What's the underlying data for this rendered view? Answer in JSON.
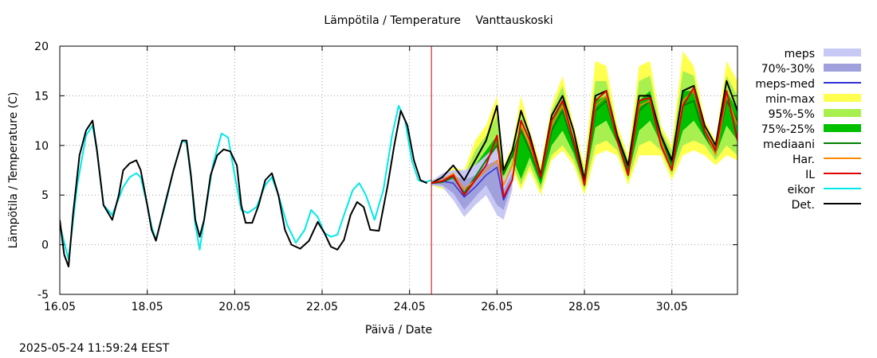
{
  "chart_data": {
    "type": "line",
    "title": "Lämpötila / Temperature",
    "location": "Vanttauskoski",
    "xlabel": "Päivä / Date",
    "ylabel": "Lämpötila / Temperature (C)",
    "timestamp": "2025-05-24 11:59:24 EEST",
    "xlim": [
      16.0,
      31.5
    ],
    "ylim": [
      -5,
      20
    ],
    "x_ticks": [
      {
        "x": 16,
        "label": "16.05"
      },
      {
        "x": 18,
        "label": "18.05"
      },
      {
        "x": 20,
        "label": "20.05"
      },
      {
        "x": 22,
        "label": "22.05"
      },
      {
        "x": 24,
        "label": "24.05"
      },
      {
        "x": 26,
        "label": "26.05"
      },
      {
        "x": 28,
        "label": "28.05"
      },
      {
        "x": 30,
        "label": "30.05"
      }
    ],
    "y_ticks": [
      -5,
      0,
      5,
      10,
      15,
      20
    ],
    "grid": true,
    "forecast_start_x": 24.5,
    "legend_placement": "right",
    "legend": [
      {
        "label": "meps",
        "kind": "band",
        "color": "#c8c8f4"
      },
      {
        "label": "70%-30%",
        "kind": "band",
        "color": "#a0a0dc"
      },
      {
        "label": "meps-med",
        "kind": "line",
        "color": "#3030d8"
      },
      {
        "label": "min-max",
        "kind": "band",
        "color": "#ffff50"
      },
      {
        "label": "95%-5%",
        "kind": "band",
        "color": "#a8f050"
      },
      {
        "label": "75%-25%",
        "kind": "band",
        "color": "#00c000"
      },
      {
        "label": "mediaani",
        "kind": "line",
        "color": "#008000"
      },
      {
        "label": "Har.",
        "kind": "line",
        "color": "#ff8800"
      },
      {
        "label": "IL",
        "kind": "line",
        "color": "#e00000"
      },
      {
        "label": "eikor",
        "kind": "line",
        "color": "#00e8e8"
      },
      {
        "label": "Det.",
        "kind": "line",
        "color": "#000000"
      }
    ],
    "observed_det": {
      "x": [
        16.0,
        16.1,
        16.2,
        16.3,
        16.45,
        16.6,
        16.75,
        16.85,
        17.0,
        17.2,
        17.35,
        17.45,
        17.6,
        17.75,
        17.85,
        18.0,
        18.1,
        18.2,
        18.4,
        18.6,
        18.8,
        18.9,
        19.0,
        19.1,
        19.2,
        19.3,
        19.45,
        19.6,
        19.75,
        19.9,
        20.05,
        20.15,
        20.25,
        20.4,
        20.55,
        20.7,
        20.85,
        21.0,
        21.15,
        21.3,
        21.5,
        21.7,
        21.9,
        22.05,
        22.2,
        22.35,
        22.5,
        22.65,
        22.8,
        22.95,
        23.1,
        23.3,
        23.5,
        23.65,
        23.8,
        23.95,
        24.1,
        24.25,
        24.4
      ],
      "y": [
        2.5,
        -1.0,
        -2.2,
        3.0,
        9.0,
        11.5,
        12.5,
        9.5,
        4.0,
        2.5,
        5.0,
        7.5,
        8.2,
        8.5,
        7.5,
        4.0,
        1.5,
        0.4,
        4.0,
        7.5,
        10.5,
        10.5,
        7.0,
        2.5,
        0.8,
        2.5,
        7.0,
        9.0,
        9.6,
        9.4,
        8.0,
        4.0,
        2.2,
        2.2,
        4.0,
        6.5,
        7.2,
        5.0,
        1.5,
        0.0,
        -0.4,
        0.4,
        2.3,
        1.2,
        -0.2,
        -0.5,
        0.5,
        3.0,
        4.3,
        3.8,
        1.5,
        1.4,
        6.0,
        10.0,
        13.5,
        12.0,
        8.5,
        6.5,
        6.2
      ]
    },
    "eikor": {
      "x": [
        16.0,
        16.2,
        16.4,
        16.6,
        16.75,
        16.85,
        17.0,
        17.2,
        17.45,
        17.6,
        17.75,
        17.85,
        18.0,
        18.1,
        18.2,
        18.4,
        18.6,
        18.8,
        18.9,
        19.0,
        19.1,
        19.2,
        19.3,
        19.5,
        19.7,
        19.85,
        20.0,
        20.15,
        20.3,
        20.5,
        20.7,
        20.85,
        21.0,
        21.2,
        21.4,
        21.6,
        21.75,
        21.9,
        22.05,
        22.2,
        22.35,
        22.5,
        22.7,
        22.85,
        23.0,
        23.2,
        23.4,
        23.6,
        23.75,
        23.9,
        24.05,
        24.2,
        24.35,
        24.5
      ],
      "y": [
        2.0,
        -1.5,
        6.0,
        11.0,
        12.0,
        9.5,
        4.0,
        3.0,
        5.8,
        6.8,
        7.2,
        6.8,
        4.0,
        1.8,
        0.5,
        3.8,
        7.5,
        10.5,
        10.2,
        6.8,
        2.0,
        -0.5,
        2.5,
        8.0,
        11.2,
        10.8,
        7.0,
        3.5,
        3.2,
        3.8,
        6.0,
        6.8,
        5.0,
        2.0,
        0.2,
        1.5,
        3.5,
        2.8,
        1.2,
        0.8,
        1.0,
        3.0,
        5.5,
        6.2,
        5.0,
        2.5,
        5.5,
        11.0,
        14.0,
        12.5,
        8.5,
        6.5,
        6.3,
        6.5
      ]
    },
    "forecast": {
      "x": [
        24.5,
        24.75,
        25.0,
        25.25,
        25.5,
        25.75,
        26.0,
        26.15,
        26.35,
        26.55,
        26.75,
        27.0,
        27.25,
        27.5,
        27.75,
        28.0,
        28.25,
        28.5,
        28.75,
        29.0,
        29.25,
        29.5,
        29.75,
        30.0,
        30.25,
        30.5,
        30.75,
        31.0,
        31.25,
        31.5
      ],
      "min_max_low": [
        6.0,
        5.6,
        6.0,
        3.5,
        5.0,
        5.5,
        3.5,
        6.0,
        7.5,
        5.5,
        7.5,
        5.0,
        8.5,
        9.5,
        8.0,
        5.0,
        9.0,
        9.5,
        9.0,
        6.0,
        9.0,
        9.0,
        9.0,
        6.5,
        9.0,
        9.5,
        9.0,
        8.0,
        9.0,
        8.5
      ],
      "min_max_high": [
        6.5,
        7.0,
        7.8,
        7.5,
        10.5,
        12.0,
        15.0,
        8.0,
        10.0,
        15.0,
        11.5,
        8.0,
        14.0,
        17.0,
        12.0,
        8.0,
        18.5,
        18.0,
        12.0,
        9.0,
        18.0,
        18.5,
        12.0,
        10.0,
        19.5,
        18.0,
        12.5,
        10.5,
        18.5,
        16.5
      ],
      "p95_low": [
        6.0,
        5.8,
        6.2,
        4.2,
        5.5,
        6.0,
        4.5,
        6.5,
        8.0,
        6.0,
        8.0,
        5.5,
        9.0,
        10.0,
        8.5,
        5.5,
        10.0,
        10.5,
        9.5,
        6.5,
        10.0,
        10.5,
        9.5,
        7.0,
        10.0,
        10.5,
        10.0,
        8.5,
        10.0,
        9.0
      ],
      "p95_high": [
        6.4,
        6.8,
        7.5,
        7.0,
        9.5,
        11.0,
        13.0,
        7.5,
        9.5,
        13.5,
        11.0,
        7.5,
        13.5,
        16.0,
        11.5,
        7.5,
        16.5,
        16.5,
        11.5,
        8.5,
        16.5,
        17.0,
        11.5,
        9.5,
        17.5,
        17.0,
        12.0,
        10.0,
        17.0,
        15.0
      ],
      "p75_low": [
        6.1,
        6.0,
        6.4,
        4.8,
        6.0,
        7.0,
        5.2,
        7.0,
        8.8,
        6.6,
        8.8,
        6.0,
        10.0,
        11.5,
        9.2,
        6.0,
        11.8,
        12.5,
        10.2,
        7.0,
        11.5,
        12.5,
        10.2,
        7.5,
        11.5,
        12.5,
        10.8,
        9.0,
        12.0,
        10.5
      ],
      "p75_high": [
        6.3,
        6.6,
        7.2,
        6.0,
        8.0,
        9.5,
        11.0,
        7.2,
        9.2,
        12.0,
        10.2,
        7.2,
        12.2,
        14.5,
        10.8,
        7.0,
        14.5,
        15.0,
        11.0,
        8.0,
        14.5,
        15.5,
        11.0,
        8.8,
        15.5,
        15.5,
        11.5,
        9.8,
        15.5,
        13.5
      ],
      "median": [
        6.2,
        6.3,
        6.8,
        5.2,
        6.8,
        8.5,
        10.0,
        7.1,
        9.0,
        11.5,
        9.5,
        6.6,
        11.5,
        13.5,
        10.0,
        6.4,
        13.5,
        14.5,
        10.5,
        7.5,
        13.5,
        14.5,
        10.5,
        8.2,
        14.0,
        14.5,
        11.0,
        9.3,
        14.5,
        12.5
      ],
      "det": [
        6.2,
        6.8,
        8.0,
        6.5,
        8.5,
        10.5,
        14.0,
        7.5,
        9.5,
        13.5,
        11.0,
        7.0,
        13.0,
        15.0,
        11.5,
        6.5,
        15.0,
        15.5,
        11.0,
        8.0,
        15.0,
        15.0,
        11.0,
        8.5,
        15.5,
        16.0,
        12.0,
        10.0,
        16.5,
        13.5
      ],
      "il": [
        6.2,
        6.4,
        7.0,
        5.0,
        6.5,
        8.0,
        11.0,
        4.8,
        6.5,
        12.5,
        10.5,
        6.8,
        12.5,
        14.5,
        10.5,
        6.0,
        14.5,
        15.5,
        10.5,
        7.0,
        14.5,
        14.8,
        10.0,
        7.5,
        14.0,
        15.8,
        11.5,
        9.5,
        15.5,
        10.5
      ],
      "har": [
        6.2,
        6.5,
        7.2,
        5.6,
        6.5,
        7.5,
        8.5,
        6.0,
        8.0,
        12.0,
        10.0,
        6.8,
        12.0,
        14.0,
        10.5,
        6.0,
        14.0,
        15.0,
        10.5,
        7.0,
        14.0,
        14.5,
        10.5,
        7.5,
        14.5,
        15.5,
        11.5,
        9.0,
        15.0,
        12.0
      ]
    },
    "meps": {
      "x": [
        24.5,
        24.75,
        25.0,
        25.25,
        25.5,
        25.75,
        26.0,
        26.15,
        26.35
      ],
      "band_low": [
        6.0,
        5.8,
        4.5,
        2.8,
        4.0,
        5.0,
        3.0,
        2.5,
        5.5
      ],
      "band_high": [
        6.4,
        7.2,
        7.5,
        7.5,
        8.0,
        9.0,
        10.0,
        6.5,
        8.0
      ],
      "p70_low": [
        6.1,
        6.0,
        5.2,
        3.5,
        4.8,
        6.0,
        4.0,
        3.5,
        6.2
      ],
      "p70_high": [
        6.3,
        6.8,
        7.0,
        6.5,
        7.0,
        8.0,
        8.5,
        5.5,
        7.2
      ],
      "median": [
        6.2,
        6.4,
        6.2,
        4.8,
        5.8,
        7.0,
        7.8,
        4.5,
        6.5
      ]
    }
  }
}
